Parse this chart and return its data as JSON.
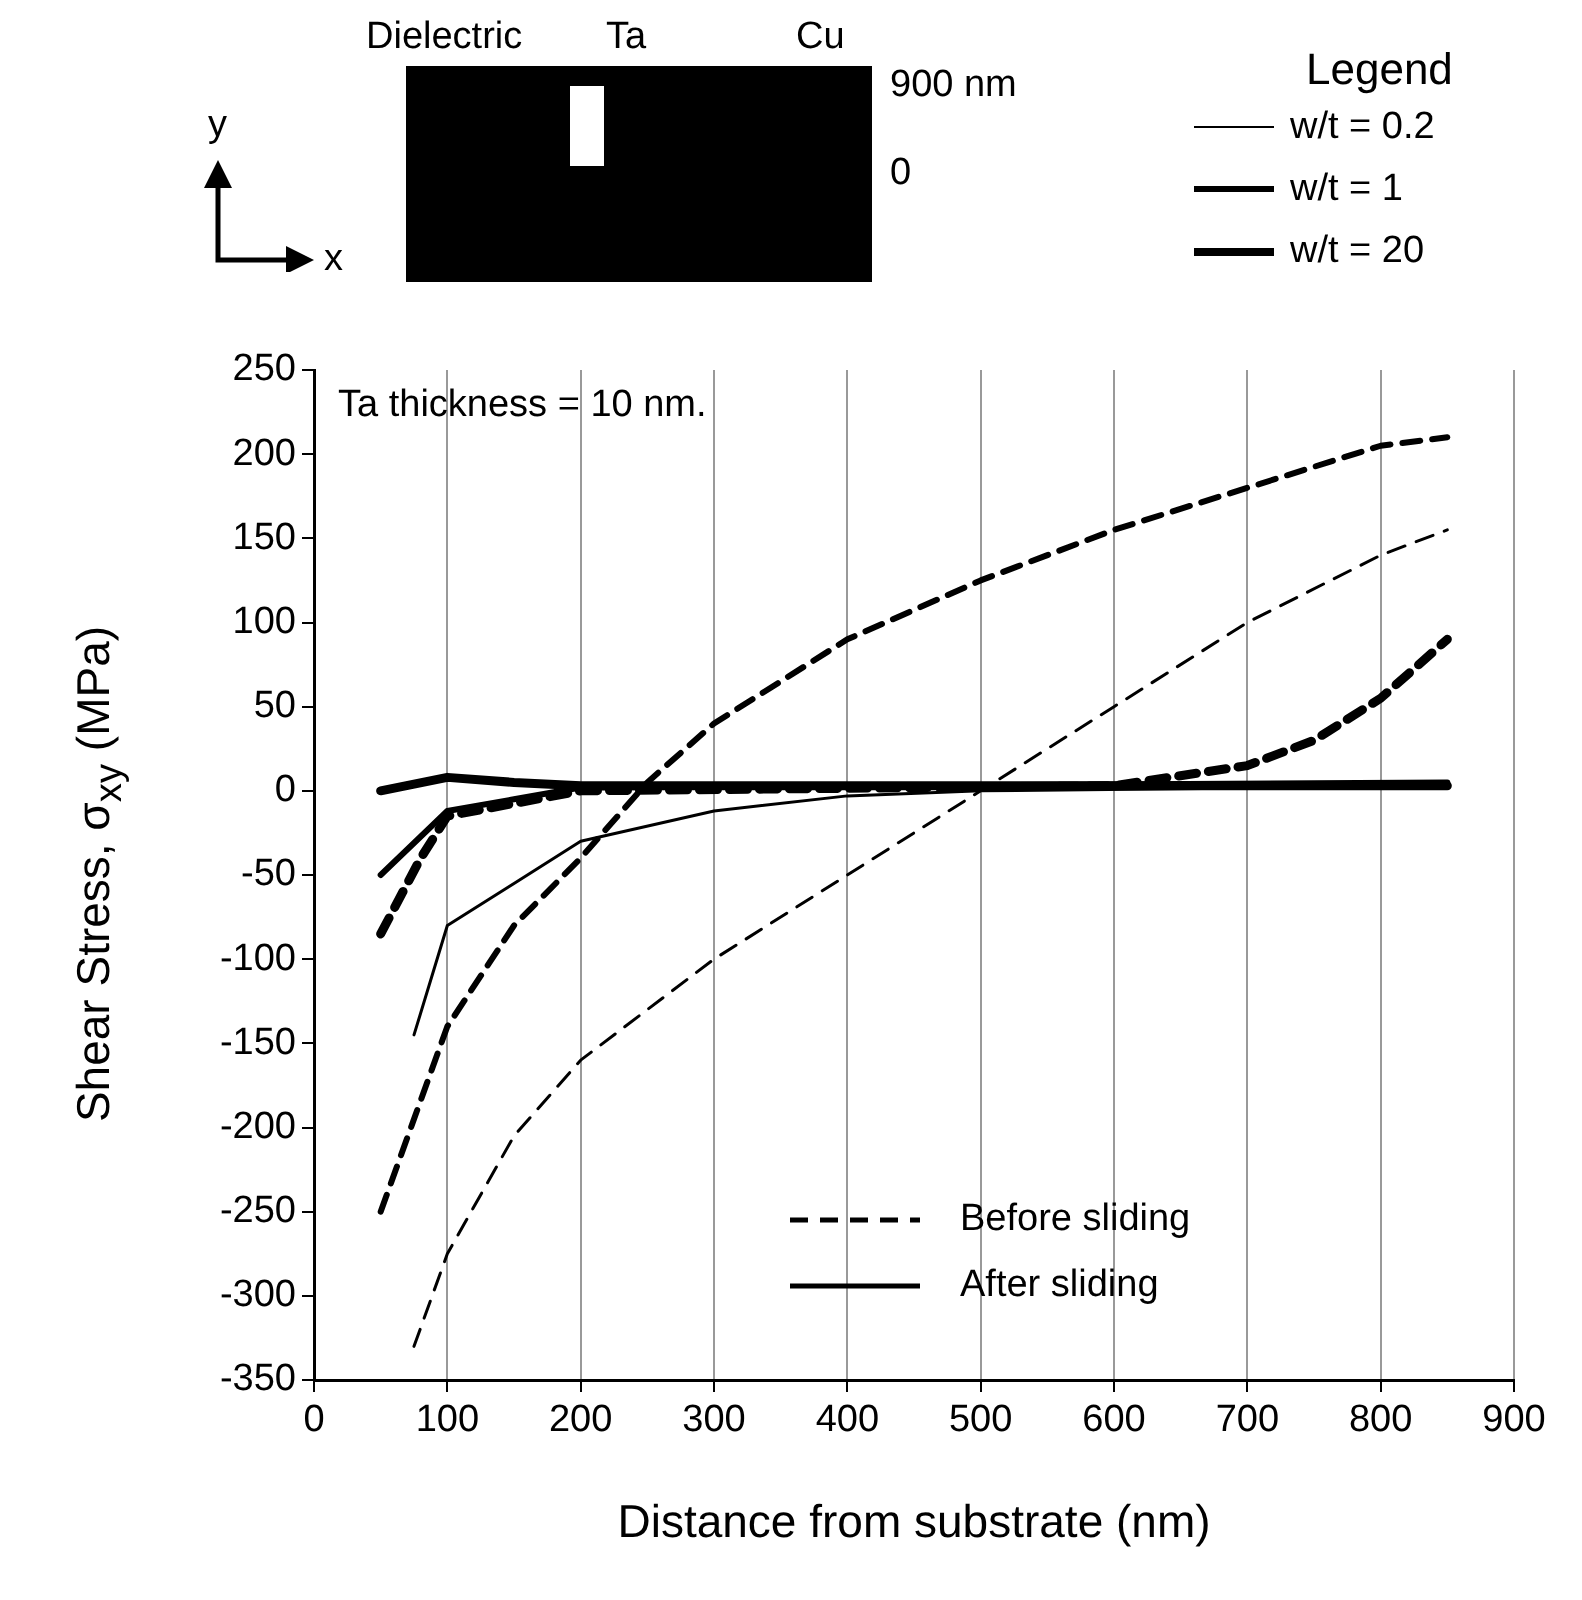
{
  "chart_data": {
    "type": "line",
    "xlabel": "Distance from substrate (nm)",
    "ylabel": "Shear Stress, σ$_{xy}$ (MPa)",
    "legend_title": "Legend",
    "legend": "top right",
    "grid": "x",
    "marker": "none",
    "xlim": [
      0,
      900
    ],
    "xticks": [
      0,
      100,
      200,
      300,
      400,
      500,
      600,
      700,
      800,
      900
    ],
    "ylim": [
      -350,
      250
    ],
    "yticks": [
      -350,
      -300,
      -250,
      -200,
      -150,
      -100,
      -50,
      0,
      50,
      100,
      150,
      200,
      250
    ],
    "annotations": [
      "Ta thickness = 10 nm.",
      "Before sliding",
      "After sliding",
      "Dielectric",
      "Ta",
      "Cu",
      "900 nm",
      "0",
      "y",
      "x"
    ],
    "series": [
      {
        "color": "#000000",
        "line_style": "dashed",
        "x": [
          75,
          100,
          150,
          200,
          300,
          400,
          500,
          600,
          700,
          800,
          850
        ],
        "values": [
          -330,
          -275,
          -205,
          -160,
          -100,
          -50,
          0,
          50,
          100,
          140,
          155
        ]
      },
      {
        "color": "#000000",
        "line_style": "dashed",
        "x": [
          50,
          100,
          150,
          200,
          250,
          300,
          400,
          500,
          600,
          700,
          800,
          850
        ],
        "values": [
          -250,
          -140,
          -80,
          -40,
          5,
          40,
          90,
          125,
          155,
          180,
          205,
          210
        ]
      },
      {
        "color": "#000000",
        "line_style": "dashed",
        "x": [
          50,
          80,
          100,
          200,
          600,
          700,
          750,
          800,
          850
        ],
        "values": [
          -85,
          -40,
          -15,
          0,
          3,
          15,
          30,
          55,
          90
        ]
      },
      {
        "name": "w/t = 0.2",
        "color": "#000000",
        "line_style": "solid",
        "x": [
          75,
          100,
          150,
          200,
          300,
          400,
          500,
          850
        ],
        "values": [
          -145,
          -80,
          -55,
          -30,
          -12,
          -3,
          0,
          3
        ]
      },
      {
        "name": "w/t = 1",
        "color": "#000000",
        "line_style": "solid",
        "x": [
          50,
          100,
          150,
          200,
          850
        ],
        "values": [
          -50,
          -12,
          -5,
          2,
          5
        ]
      },
      {
        "name": "w/t = 20",
        "color": "#000000",
        "line_style": "solid",
        "x": [
          50,
          100,
          150,
          200,
          850
        ],
        "values": [
          0,
          8,
          5,
          3,
          3
        ]
      }
    ]
  }
}
